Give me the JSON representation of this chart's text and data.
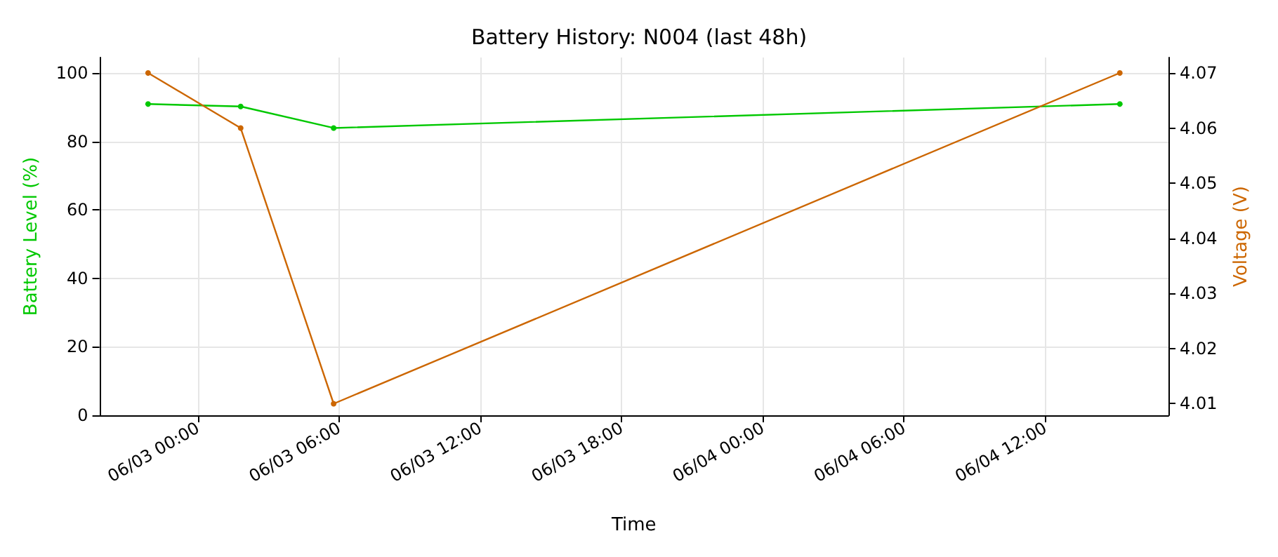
{
  "chart_data": {
    "type": "line",
    "title": "Battery History: N004 (last 48h)",
    "xlabel": "Time",
    "ylabel": "Battery Level (%)",
    "y2label": "Voltage (V)",
    "x": [
      "--06-02T21:53",
      "--06-03T01:49",
      "--06-03T05:46",
      "--06-04T15:10"
    ],
    "series": [
      {
        "color": "#00c800",
        "values": [
          91,
          90.3,
          84,
          91
        ]
      },
      {
        "color": "#cc6600",
        "axis": "y2",
        "values": [
          4.07,
          4.06,
          4.01,
          4.07
        ]
      }
    ],
    "xlim": [
      "--06-02T19:49",
      "--06-04T17:14"
    ],
    "xticks": [
      {
        "value": "--06-03T00:00",
        "label": "06/03 00:00"
      },
      {
        "value": "--06-03T06:00",
        "label": "06/03 06:00"
      },
      {
        "value": "--06-03T12:00",
        "label": "06/03 12:00"
      },
      {
        "value": "--06-03T18:00",
        "label": "06/03 18:00"
      },
      {
        "value": "--06-04T00:00",
        "label": "06/04 00:00"
      },
      {
        "value": "--06-04T06:00",
        "label": "06/04 06:00"
      },
      {
        "value": "--06-04T12:00",
        "label": "06/04 12:00"
      }
    ],
    "ylim": [
      0,
      104.6
    ],
    "yticks": [
      0,
      20,
      40,
      60,
      80,
      100
    ],
    "y2lim": [
      4.0079,
      4.0728
    ],
    "y2ticks": [
      4.01,
      4.02,
      4.03,
      4.04,
      4.05,
      4.06,
      4.07
    ],
    "grid": true,
    "marker": "circle",
    "line_style": "solid"
  }
}
